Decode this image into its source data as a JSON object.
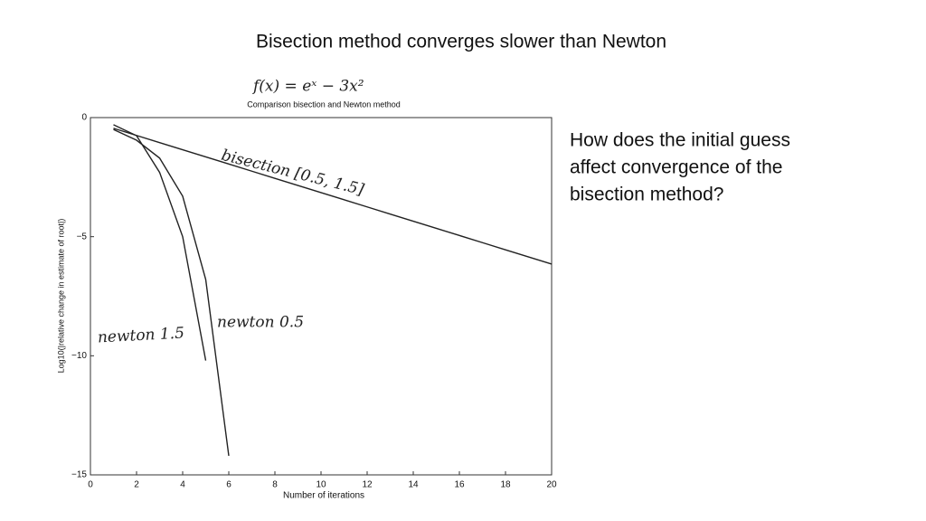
{
  "slide": {
    "title": "Bisection method converges slower than Newton",
    "question": [
      "How does the initial guess",
      "affect convergence of the",
      "bisection method?"
    ]
  },
  "chart_data": {
    "type": "line",
    "title": "Comparison bisection and Newton method",
    "x_label": "Number of iterations",
    "y_label": "Log10(|relative change in estimate of root|)",
    "annotations": [
      "f(x) = eˣ − 3x²",
      "bisection [0.5, 1.5]",
      "newton 0.5",
      "newton 1.5"
    ],
    "x": [
      1,
      2,
      3,
      4,
      5,
      6,
      7,
      8,
      9,
      10,
      11,
      12,
      13,
      14,
      15,
      16,
      17,
      18,
      19,
      20
    ],
    "series": [
      {
        "name": "bisection",
        "color": "#222222",
        "values": [
          -0.45,
          -0.75,
          -1.05,
          -1.35,
          -1.65,
          -1.95,
          -2.25,
          -2.55,
          -2.85,
          -3.15,
          -3.45,
          -3.75,
          -4.05,
          -4.35,
          -4.65,
          -4.95,
          -5.25,
          -5.55,
          -5.85,
          -6.15
        ]
      },
      {
        "name": "newton 0.5",
        "color": "#222222",
        "values": [
          -0.5,
          -0.95,
          -1.7,
          -3.3,
          -6.8,
          -14.2,
          null,
          null,
          null,
          null,
          null,
          null,
          null,
          null,
          null,
          null,
          null,
          null,
          null,
          null
        ]
      },
      {
        "name": "newton 1.5",
        "color": "#222222",
        "values": [
          -0.3,
          -0.76,
          -2.3,
          -5.0,
          -10.2,
          null,
          null,
          null,
          null,
          null,
          null,
          null,
          null,
          null,
          null,
          null,
          null,
          null,
          null,
          null
        ]
      }
    ],
    "xlim": [
      0,
      20
    ],
    "ylim": [
      -15,
      0
    ],
    "xticks": [
      0,
      2,
      4,
      6,
      8,
      10,
      12,
      14,
      16,
      18,
      20
    ],
    "yticks": [
      {
        "value": -15,
        "label": "−15"
      },
      {
        "value": -10,
        "label": "−10"
      },
      {
        "value": -5,
        "label": "−5"
      },
      0
    ]
  }
}
